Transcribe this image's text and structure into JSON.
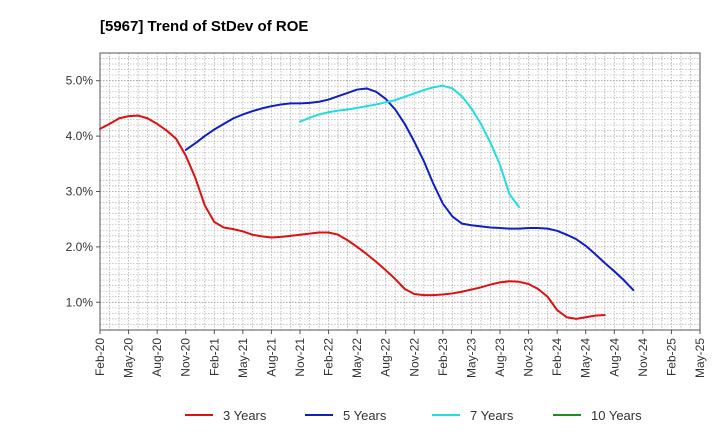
{
  "chart_data": {
    "type": "line",
    "title": "[5967]  Trend of StDev of ROE",
    "xlabel": "",
    "ylabel": "",
    "x_tick_labels": [
      "Feb-20",
      "May-20",
      "Aug-20",
      "Nov-20",
      "Feb-21",
      "May-21",
      "Aug-21",
      "Nov-21",
      "Feb-22",
      "May-22",
      "Aug-22",
      "Nov-22",
      "Feb-23",
      "May-23",
      "Aug-23",
      "Nov-23",
      "Feb-24",
      "May-24",
      "Aug-24",
      "Nov-24",
      "Feb-25",
      "May-25"
    ],
    "y_tick_labels": [
      "1.0%",
      "2.0%",
      "3.0%",
      "4.0%",
      "5.0%"
    ],
    "ylim": [
      0.5,
      5.5
    ],
    "y_ticks": [
      1.0,
      2.0,
      3.0,
      4.0,
      5.0
    ],
    "grid": true,
    "legend_position": "bottom",
    "series": [
      {
        "name": "3 Years",
        "color": "#dd1111",
        "points": [
          [
            0,
            4.13
          ],
          [
            1,
            4.22
          ],
          [
            2,
            4.32
          ],
          [
            3,
            4.36
          ],
          [
            4,
            4.37
          ],
          [
            5,
            4.32
          ],
          [
            6,
            4.22
          ],
          [
            7,
            4.1
          ],
          [
            8,
            3.95
          ],
          [
            9,
            3.65
          ],
          [
            10,
            3.25
          ],
          [
            11,
            2.75
          ],
          [
            12,
            2.45
          ],
          [
            13,
            2.35
          ],
          [
            14,
            2.32
          ],
          [
            15,
            2.28
          ],
          [
            16,
            2.22
          ],
          [
            17,
            2.19
          ],
          [
            18,
            2.17
          ],
          [
            19,
            2.18
          ],
          [
            20,
            2.2
          ],
          [
            21,
            2.22
          ],
          [
            22,
            2.24
          ],
          [
            23,
            2.26
          ],
          [
            24,
            2.26
          ],
          [
            25,
            2.22
          ],
          [
            26,
            2.12
          ],
          [
            27,
            2.0
          ],
          [
            28,
            1.87
          ],
          [
            29,
            1.73
          ],
          [
            30,
            1.58
          ],
          [
            31,
            1.42
          ],
          [
            32,
            1.24
          ],
          [
            33,
            1.15
          ],
          [
            34,
            1.13
          ],
          [
            35,
            1.13
          ],
          [
            36,
            1.14
          ],
          [
            37,
            1.16
          ],
          [
            38,
            1.19
          ],
          [
            39,
            1.23
          ],
          [
            40,
            1.27
          ],
          [
            41,
            1.32
          ],
          [
            42,
            1.36
          ],
          [
            43,
            1.38
          ],
          [
            44,
            1.37
          ],
          [
            45,
            1.33
          ],
          [
            46,
            1.24
          ],
          [
            47,
            1.1
          ],
          [
            48,
            0.86
          ],
          [
            49,
            0.73
          ],
          [
            50,
            0.7
          ],
          [
            51,
            0.73
          ],
          [
            52,
            0.76
          ],
          [
            53,
            0.77
          ]
        ]
      },
      {
        "name": "5 Years",
        "color": "#1020c0",
        "points": [
          [
            9,
            3.75
          ],
          [
            10,
            3.87
          ],
          [
            11,
            4.0
          ],
          [
            12,
            4.12
          ],
          [
            13,
            4.22
          ],
          [
            14,
            4.32
          ],
          [
            15,
            4.39
          ],
          [
            16,
            4.45
          ],
          [
            17,
            4.5
          ],
          [
            18,
            4.54
          ],
          [
            19,
            4.57
          ],
          [
            20,
            4.59
          ],
          [
            21,
            4.59
          ],
          [
            22,
            4.6
          ],
          [
            23,
            4.62
          ],
          [
            24,
            4.66
          ],
          [
            25,
            4.72
          ],
          [
            26,
            4.78
          ],
          [
            27,
            4.84
          ],
          [
            28,
            4.86
          ],
          [
            29,
            4.8
          ],
          [
            30,
            4.67
          ],
          [
            31,
            4.48
          ],
          [
            32,
            4.22
          ],
          [
            33,
            3.9
          ],
          [
            34,
            3.55
          ],
          [
            35,
            3.14
          ],
          [
            36,
            2.78
          ],
          [
            37,
            2.55
          ],
          [
            38,
            2.42
          ],
          [
            39,
            2.39
          ],
          [
            40,
            2.37
          ],
          [
            41,
            2.35
          ],
          [
            42,
            2.34
          ],
          [
            43,
            2.33
          ],
          [
            44,
            2.33
          ],
          [
            45,
            2.34
          ],
          [
            46,
            2.34
          ],
          [
            47,
            2.33
          ],
          [
            48,
            2.29
          ],
          [
            49,
            2.22
          ],
          [
            50,
            2.14
          ],
          [
            51,
            2.02
          ],
          [
            52,
            1.87
          ],
          [
            53,
            1.71
          ],
          [
            54,
            1.56
          ],
          [
            55,
            1.4
          ],
          [
            56,
            1.22
          ]
        ]
      },
      {
        "name": "7 Years",
        "color": "#22dddd",
        "points": [
          [
            21,
            4.26
          ],
          [
            22,
            4.33
          ],
          [
            23,
            4.39
          ],
          [
            24,
            4.43
          ],
          [
            25,
            4.46
          ],
          [
            26,
            4.48
          ],
          [
            27,
            4.51
          ],
          [
            28,
            4.54
          ],
          [
            29,
            4.57
          ],
          [
            30,
            4.61
          ],
          [
            31,
            4.65
          ],
          [
            32,
            4.71
          ],
          [
            33,
            4.77
          ],
          [
            34,
            4.83
          ],
          [
            35,
            4.88
          ],
          [
            36,
            4.91
          ],
          [
            37,
            4.86
          ],
          [
            38,
            4.72
          ],
          [
            39,
            4.5
          ],
          [
            40,
            4.22
          ],
          [
            41,
            3.88
          ],
          [
            42,
            3.48
          ],
          [
            43,
            2.95
          ],
          [
            44,
            2.72
          ]
        ]
      },
      {
        "name": "10 Years",
        "color": "#228b22",
        "points": []
      }
    ]
  }
}
